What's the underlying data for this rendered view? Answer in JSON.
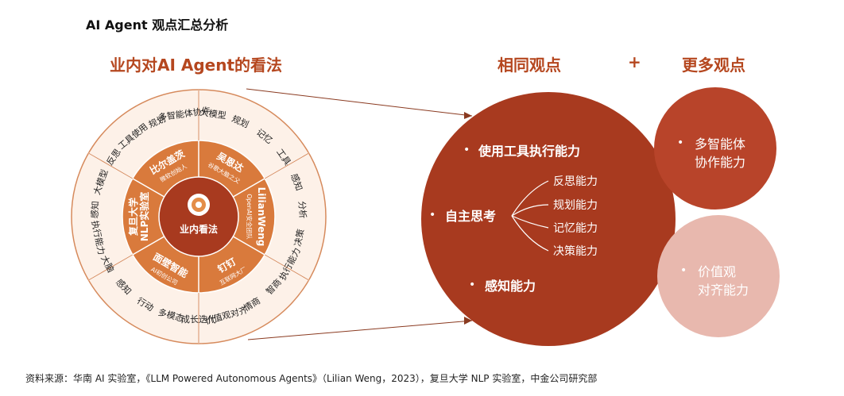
{
  "title": "AI Agent 观点汇总分析",
  "left_heading": "业内对AI Agent的看法",
  "right": {
    "same_heading": "相同观点",
    "plus": "+",
    "more_heading": "更多观点"
  },
  "wheel": {
    "center": "业内看法",
    "experts": [
      {
        "name": "吴恩达",
        "desc": "谷歌大脑之父"
      },
      {
        "name": "LilianWeng",
        "desc": "OpenAI安全团队"
      },
      {
        "name": "钉钉",
        "desc": "互联网大厂"
      },
      {
        "name": "面壁智能",
        "desc": "AI初创公司"
      },
      {
        "name": "复旦大学",
        "name2": "NLP实验室",
        "desc": ""
      },
      {
        "name": "比尔盖茨",
        "desc": "微软创始人"
      }
    ],
    "outer_labels": [
      "大模型",
      "规划",
      "记忆",
      "工具",
      "感知",
      "分析",
      "决策",
      "执行能力",
      "智商",
      "情商",
      "价值观对齐",
      "成长迭代",
      "多模态",
      "行动",
      "感知",
      "大脑",
      "执行能力",
      "感知",
      "大模型",
      "反思",
      "工具使用",
      "规划",
      "多智能体协作"
    ]
  },
  "main_circle": {
    "items": [
      "使用工具执行能力",
      "自主思考",
      "感知能力"
    ],
    "sub_items": [
      "反思能力",
      "规划能力",
      "记忆能力",
      "决策能力"
    ]
  },
  "side_circles": [
    {
      "lines": [
        "多智能体",
        "协作能力"
      ],
      "color": "#b8442a"
    },
    {
      "lines": [
        "价值观",
        "对齐能力"
      ],
      "color": "#e8b8ae"
    }
  ],
  "colors": {
    "accent": "#b5471f",
    "main_circle": "#a83a1f",
    "wheel_inner": "#d97a3c",
    "wheel_center": "#a83a1f",
    "ring_light": "#fbe9dc",
    "ring_border": "#d68a5c"
  },
  "source": "资料来源：华南 AI 实验室，《LLM Powered Autonomous Agents》（Lilian Weng，2023），复旦大学 NLP 实验室，中金公司研究部"
}
